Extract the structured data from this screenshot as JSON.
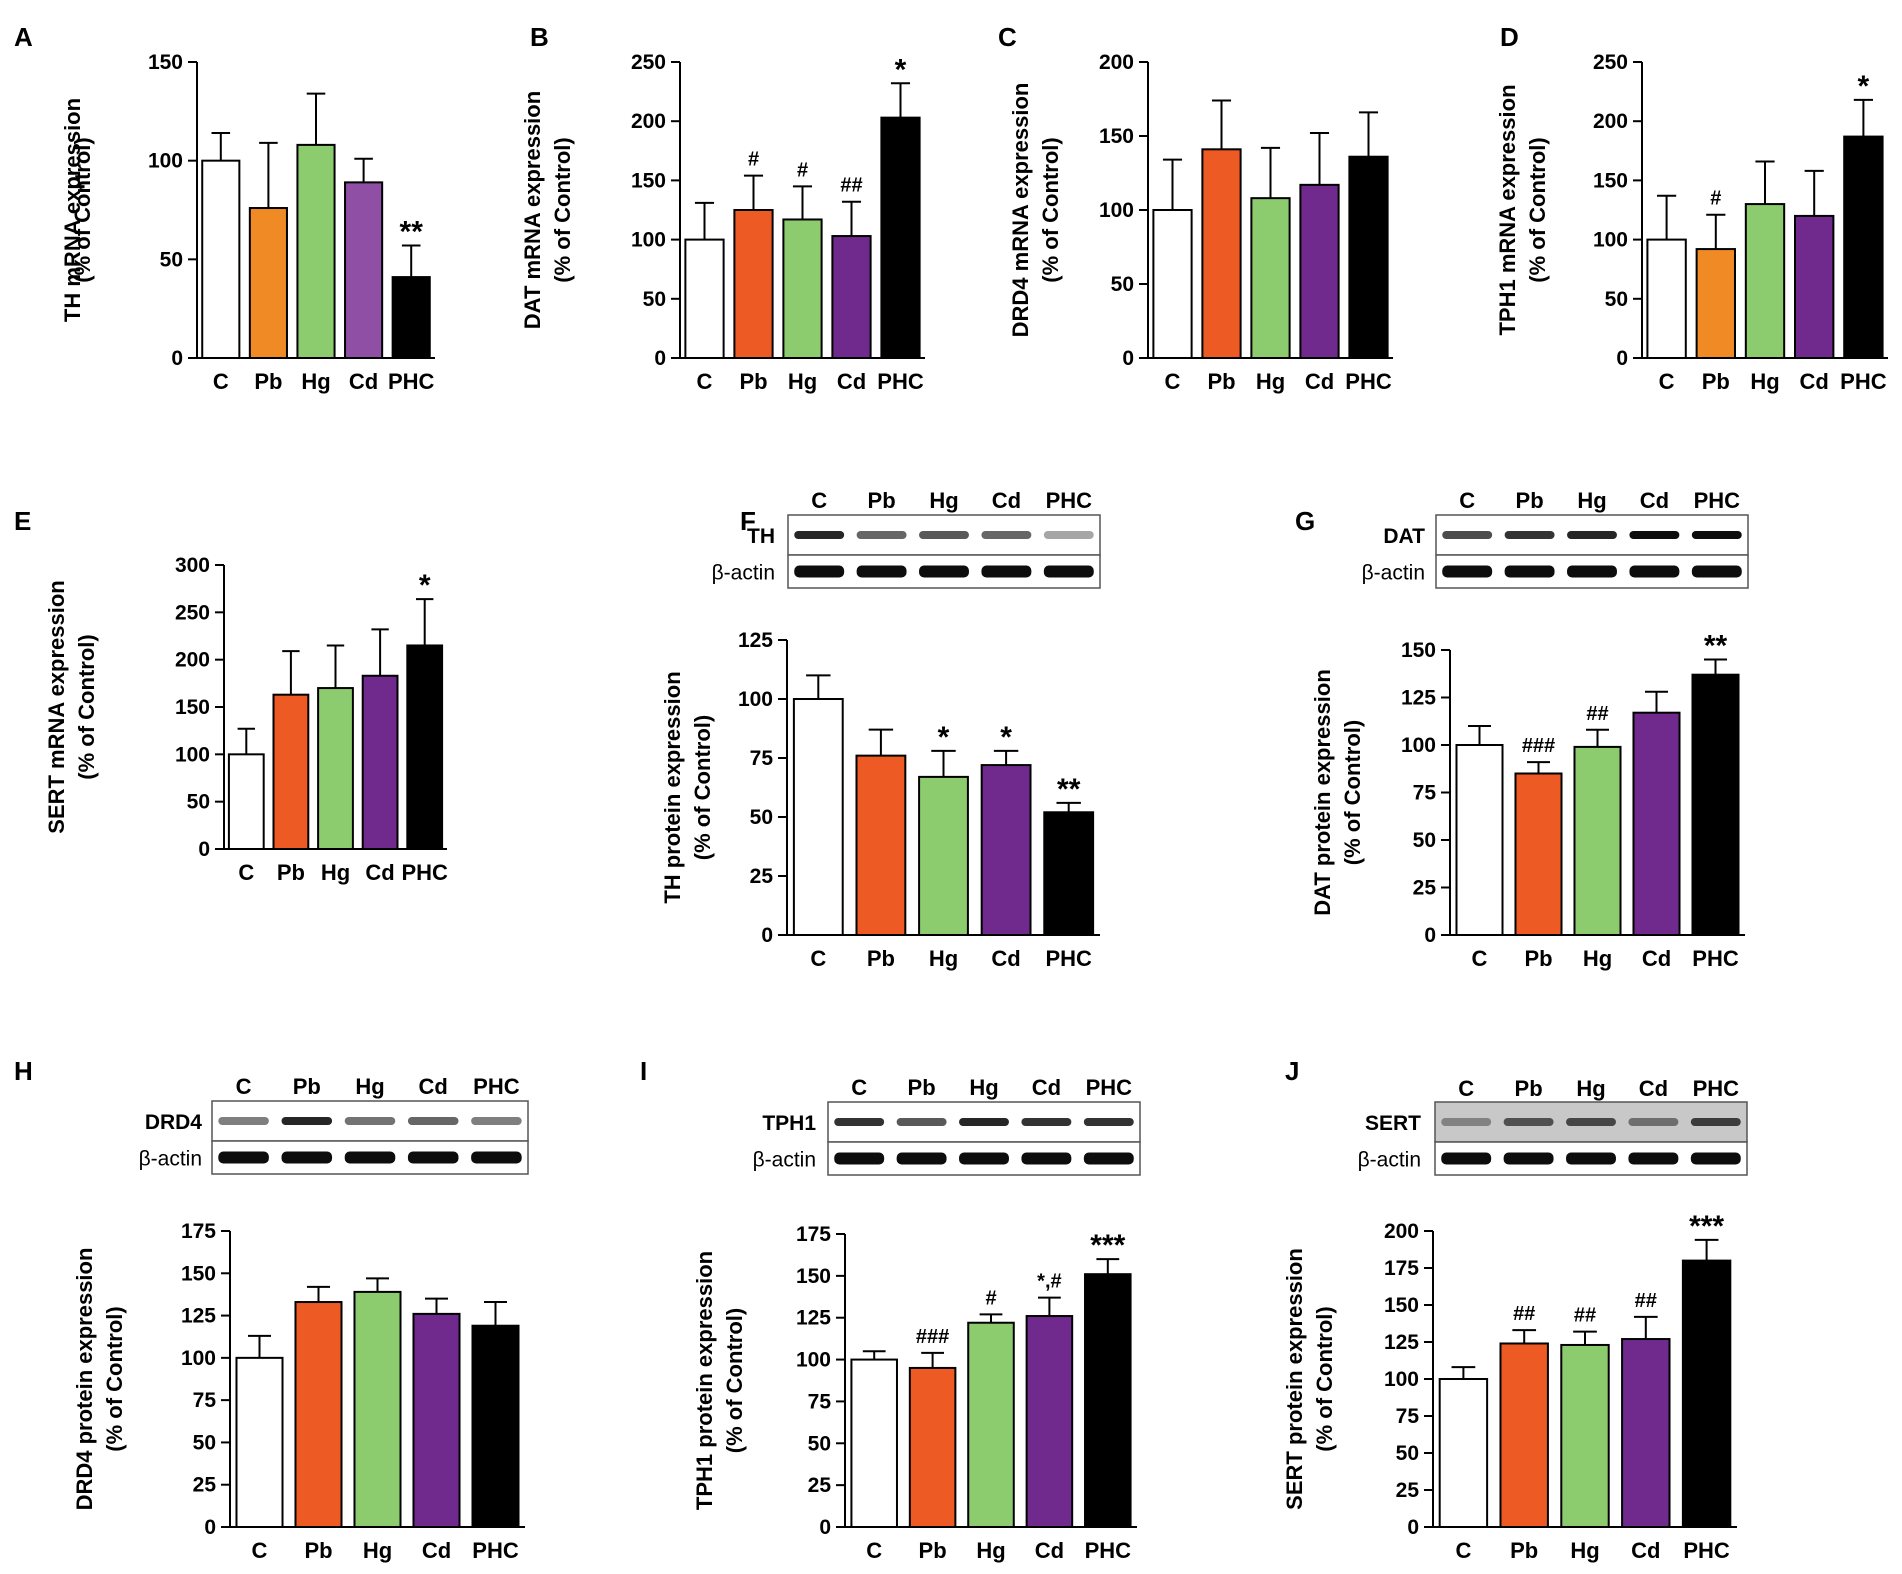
{
  "figure": {
    "categories": [
      "C",
      "Pb",
      "Hg",
      "Cd",
      "PHC"
    ],
    "bar_colors": {
      "C": "#ffffff",
      "Pb_light": "#f08a24",
      "Pb_dark": "#ee5a24",
      "Hg": "#8ccb6e",
      "Cd_light": "#8e4fa4",
      "Cd_dark": "#702a8e",
      "PHC": "#000000"
    },
    "blot_loading_label": "β-actin"
  },
  "chart_data": [
    {
      "panel": "A",
      "type": "bar",
      "ylabel": [
        "TH mRNA expression",
        "(% of Control)"
      ],
      "categories": [
        "C",
        "Pb",
        "Hg",
        "Cd",
        "PHC"
      ],
      "values": [
        100,
        76,
        108,
        89,
        41
      ],
      "errors": [
        14,
        33,
        26,
        12,
        16
      ],
      "annotations": [
        "",
        "",
        "",
        "",
        "**"
      ],
      "ylim": [
        0,
        150
      ],
      "yticks": [
        0,
        50,
        100,
        150
      ],
      "colors": [
        "#ffffff",
        "#f08a24",
        "#8ccb6e",
        "#8e4fa4",
        "#000000"
      ]
    },
    {
      "panel": "B",
      "type": "bar",
      "ylabel": [
        "DAT mRNA expression",
        "(% of Control)"
      ],
      "categories": [
        "C",
        "Pb",
        "Hg",
        "Cd",
        "PHC"
      ],
      "values": [
        100,
        125,
        117,
        103,
        203
      ],
      "errors": [
        31,
        29,
        28,
        29,
        29
      ],
      "annotations": [
        "",
        "#",
        "#",
        "##",
        "*"
      ],
      "ylim": [
        0,
        250
      ],
      "yticks": [
        0,
        50,
        100,
        150,
        200,
        250
      ],
      "colors": [
        "#ffffff",
        "#ee5a24",
        "#8ccb6e",
        "#702a8e",
        "#000000"
      ]
    },
    {
      "panel": "C",
      "type": "bar",
      "ylabel": [
        "DRD4 mRNA expression",
        "(% of Control)"
      ],
      "categories": [
        "C",
        "Pb",
        "Hg",
        "Cd",
        "PHC"
      ],
      "values": [
        100,
        141,
        108,
        117,
        136
      ],
      "errors": [
        34,
        33,
        34,
        35,
        30
      ],
      "annotations": [
        "",
        "",
        "",
        "",
        ""
      ],
      "ylim": [
        0,
        200
      ],
      "yticks": [
        0,
        50,
        100,
        150,
        200
      ],
      "colors": [
        "#ffffff",
        "#ee5a24",
        "#8ccb6e",
        "#702a8e",
        "#000000"
      ]
    },
    {
      "panel": "D",
      "type": "bar",
      "ylabel": [
        "TPH1 mRNA expression",
        "(% of Control)"
      ],
      "categories": [
        "C",
        "Pb",
        "Hg",
        "Cd",
        "PHC"
      ],
      "values": [
        100,
        92,
        130,
        120,
        187
      ],
      "errors": [
        37,
        29,
        36,
        38,
        31
      ],
      "annotations": [
        "",
        "#",
        "",
        "",
        "*"
      ],
      "ylim": [
        0,
        250
      ],
      "yticks": [
        0,
        50,
        100,
        150,
        200,
        250
      ],
      "colors": [
        "#ffffff",
        "#f08a24",
        "#8ccb6e",
        "#702a8e",
        "#000000"
      ]
    },
    {
      "panel": "E",
      "type": "bar",
      "ylabel": [
        "SERT mRNA expression",
        "(% of Control)"
      ],
      "categories": [
        "C",
        "Pb",
        "Hg",
        "Cd",
        "PHC"
      ],
      "values": [
        100,
        163,
        170,
        183,
        215
      ],
      "errors": [
        27,
        46,
        45,
        49,
        49
      ],
      "annotations": [
        "",
        "",
        "",
        "",
        "*"
      ],
      "ylim": [
        0,
        300
      ],
      "yticks": [
        0,
        50,
        100,
        150,
        200,
        250,
        300
      ],
      "colors": [
        "#ffffff",
        "#ee5a24",
        "#8ccb6e",
        "#702a8e",
        "#000000"
      ]
    },
    {
      "panel": "F",
      "type": "bar",
      "ylabel": [
        "TH protein expression",
        "(% of Control)"
      ],
      "categories": [
        "C",
        "Pb",
        "Hg",
        "Cd",
        "PHC"
      ],
      "values": [
        100,
        76,
        67,
        72,
        52
      ],
      "errors": [
        10,
        11,
        11,
        6,
        4
      ],
      "annotations": [
        "",
        "",
        "*",
        "*",
        "**"
      ],
      "ylim": [
        0,
        125
      ],
      "yticks": [
        0,
        25,
        50,
        75,
        100,
        125
      ],
      "colors": [
        "#ffffff",
        "#ee5a24",
        "#8ccb6e",
        "#702a8e",
        "#000000"
      ],
      "blot": {
        "target": "TH",
        "loading": "β-actin"
      }
    },
    {
      "panel": "G",
      "type": "bar",
      "ylabel": [
        "DAT protein expression",
        "(% of Control)"
      ],
      "categories": [
        "C",
        "Pb",
        "Hg",
        "Cd",
        "PHC"
      ],
      "values": [
        100,
        85,
        99,
        117,
        137
      ],
      "errors": [
        10,
        6,
        9,
        11,
        8
      ],
      "annotations": [
        "",
        "###",
        "##",
        "",
        "**"
      ],
      "ylim": [
        0,
        150
      ],
      "yticks": [
        0,
        25,
        50,
        75,
        100,
        125,
        150
      ],
      "colors": [
        "#ffffff",
        "#ee5a24",
        "#8ccb6e",
        "#702a8e",
        "#000000"
      ],
      "blot": {
        "target": "DAT",
        "loading": "β-actin"
      }
    },
    {
      "panel": "H",
      "type": "bar",
      "ylabel": [
        "DRD4 protein expression",
        "(% of Control)"
      ],
      "categories": [
        "C",
        "Pb",
        "Hg",
        "Cd",
        "PHC"
      ],
      "values": [
        100,
        133,
        139,
        126,
        119
      ],
      "errors": [
        13,
        9,
        8,
        9,
        14
      ],
      "annotations": [
        "",
        "",
        "",
        "",
        ""
      ],
      "ylim": [
        0,
        175
      ],
      "yticks": [
        0,
        25,
        50,
        75,
        100,
        125,
        150,
        175
      ],
      "colors": [
        "#ffffff",
        "#ee5a24",
        "#8ccb6e",
        "#702a8e",
        "#000000"
      ],
      "blot": {
        "target": "DRD4",
        "loading": "β-actin"
      }
    },
    {
      "panel": "I",
      "type": "bar",
      "ylabel": [
        "TPH1 protein expression",
        "(% of Control)"
      ],
      "categories": [
        "C",
        "Pb",
        "Hg",
        "Cd",
        "PHC"
      ],
      "values": [
        100,
        95,
        122,
        126,
        151
      ],
      "errors": [
        5,
        9,
        5,
        11,
        9
      ],
      "annotations": [
        "",
        "###",
        "#",
        "*,#",
        "***"
      ],
      "ylim": [
        0,
        175
      ],
      "yticks": [
        0,
        25,
        50,
        75,
        100,
        125,
        150,
        175
      ],
      "colors": [
        "#ffffff",
        "#ee5a24",
        "#8ccb6e",
        "#702a8e",
        "#000000"
      ],
      "blot": {
        "target": "TPH1",
        "loading": "β-actin"
      }
    },
    {
      "panel": "J",
      "type": "bar",
      "ylabel": [
        "SERT protein expression",
        "(% of Control)"
      ],
      "categories": [
        "C",
        "Pb",
        "Hg",
        "Cd",
        "PHC"
      ],
      "values": [
        100,
        124,
        123,
        127,
        180
      ],
      "errors": [
        8,
        9,
        9,
        15,
        14
      ],
      "annotations": [
        "",
        "##",
        "##",
        "##",
        "***"
      ],
      "ylim": [
        0,
        200
      ],
      "yticks": [
        0,
        25,
        50,
        75,
        100,
        125,
        150,
        175,
        200
      ],
      "colors": [
        "#ffffff",
        "#ee5a24",
        "#8ccb6e",
        "#702a8e",
        "#000000"
      ],
      "blot": {
        "target": "SERT",
        "loading": "β-actin"
      }
    }
  ]
}
